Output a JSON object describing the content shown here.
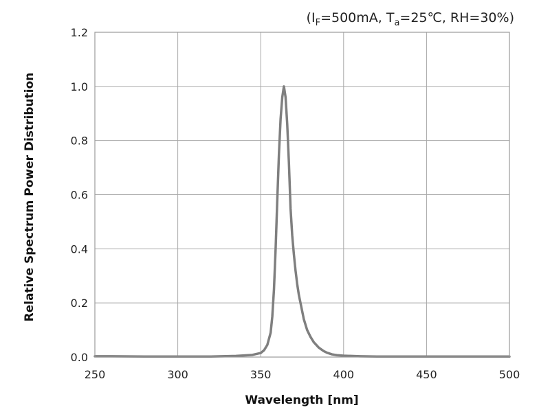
{
  "chart_data": {
    "type": "line",
    "condition": {
      "prefix": "(I",
      "sub1": "F",
      "mid1": "=500mA, T",
      "sub2": "a",
      "suffix": "=25℃, RH=30%)"
    },
    "xlabel": "Wavelength [nm]",
    "ylabel": "Relative Spectrum Power Distribution",
    "xlim": [
      250,
      500
    ],
    "ylim": [
      0,
      1.2
    ],
    "x_ticks": [
      "250",
      "300",
      "350",
      "400",
      "450",
      "500"
    ],
    "y_ticks": [
      "0.0",
      "0.2",
      "0.4",
      "0.6",
      "0.8",
      "1.0",
      "1.2"
    ],
    "grid": true,
    "line_color": "#7f7f7f",
    "series": [
      {
        "x": [
          250,
          260,
          280,
          300,
          320,
          335,
          345,
          350,
          352,
          354,
          356,
          357,
          358,
          359,
          360,
          361,
          362,
          363,
          364,
          365,
          366,
          367,
          368,
          369,
          370,
          371,
          372,
          373,
          374,
          375,
          376,
          378,
          380,
          382,
          385,
          388,
          390,
          393,
          396,
          400,
          410,
          420,
          440,
          460,
          480,
          500
        ],
        "y": [
          0.003,
          0.003,
          0.002,
          0.002,
          0.002,
          0.004,
          0.008,
          0.015,
          0.025,
          0.045,
          0.09,
          0.15,
          0.25,
          0.4,
          0.58,
          0.75,
          0.88,
          0.96,
          1.0,
          0.96,
          0.86,
          0.72,
          0.55,
          0.45,
          0.38,
          0.32,
          0.27,
          0.23,
          0.2,
          0.17,
          0.14,
          0.1,
          0.075,
          0.055,
          0.035,
          0.022,
          0.016,
          0.01,
          0.007,
          0.005,
          0.003,
          0.002,
          0.002,
          0.002,
          0.002,
          0.002
        ]
      }
    ]
  }
}
